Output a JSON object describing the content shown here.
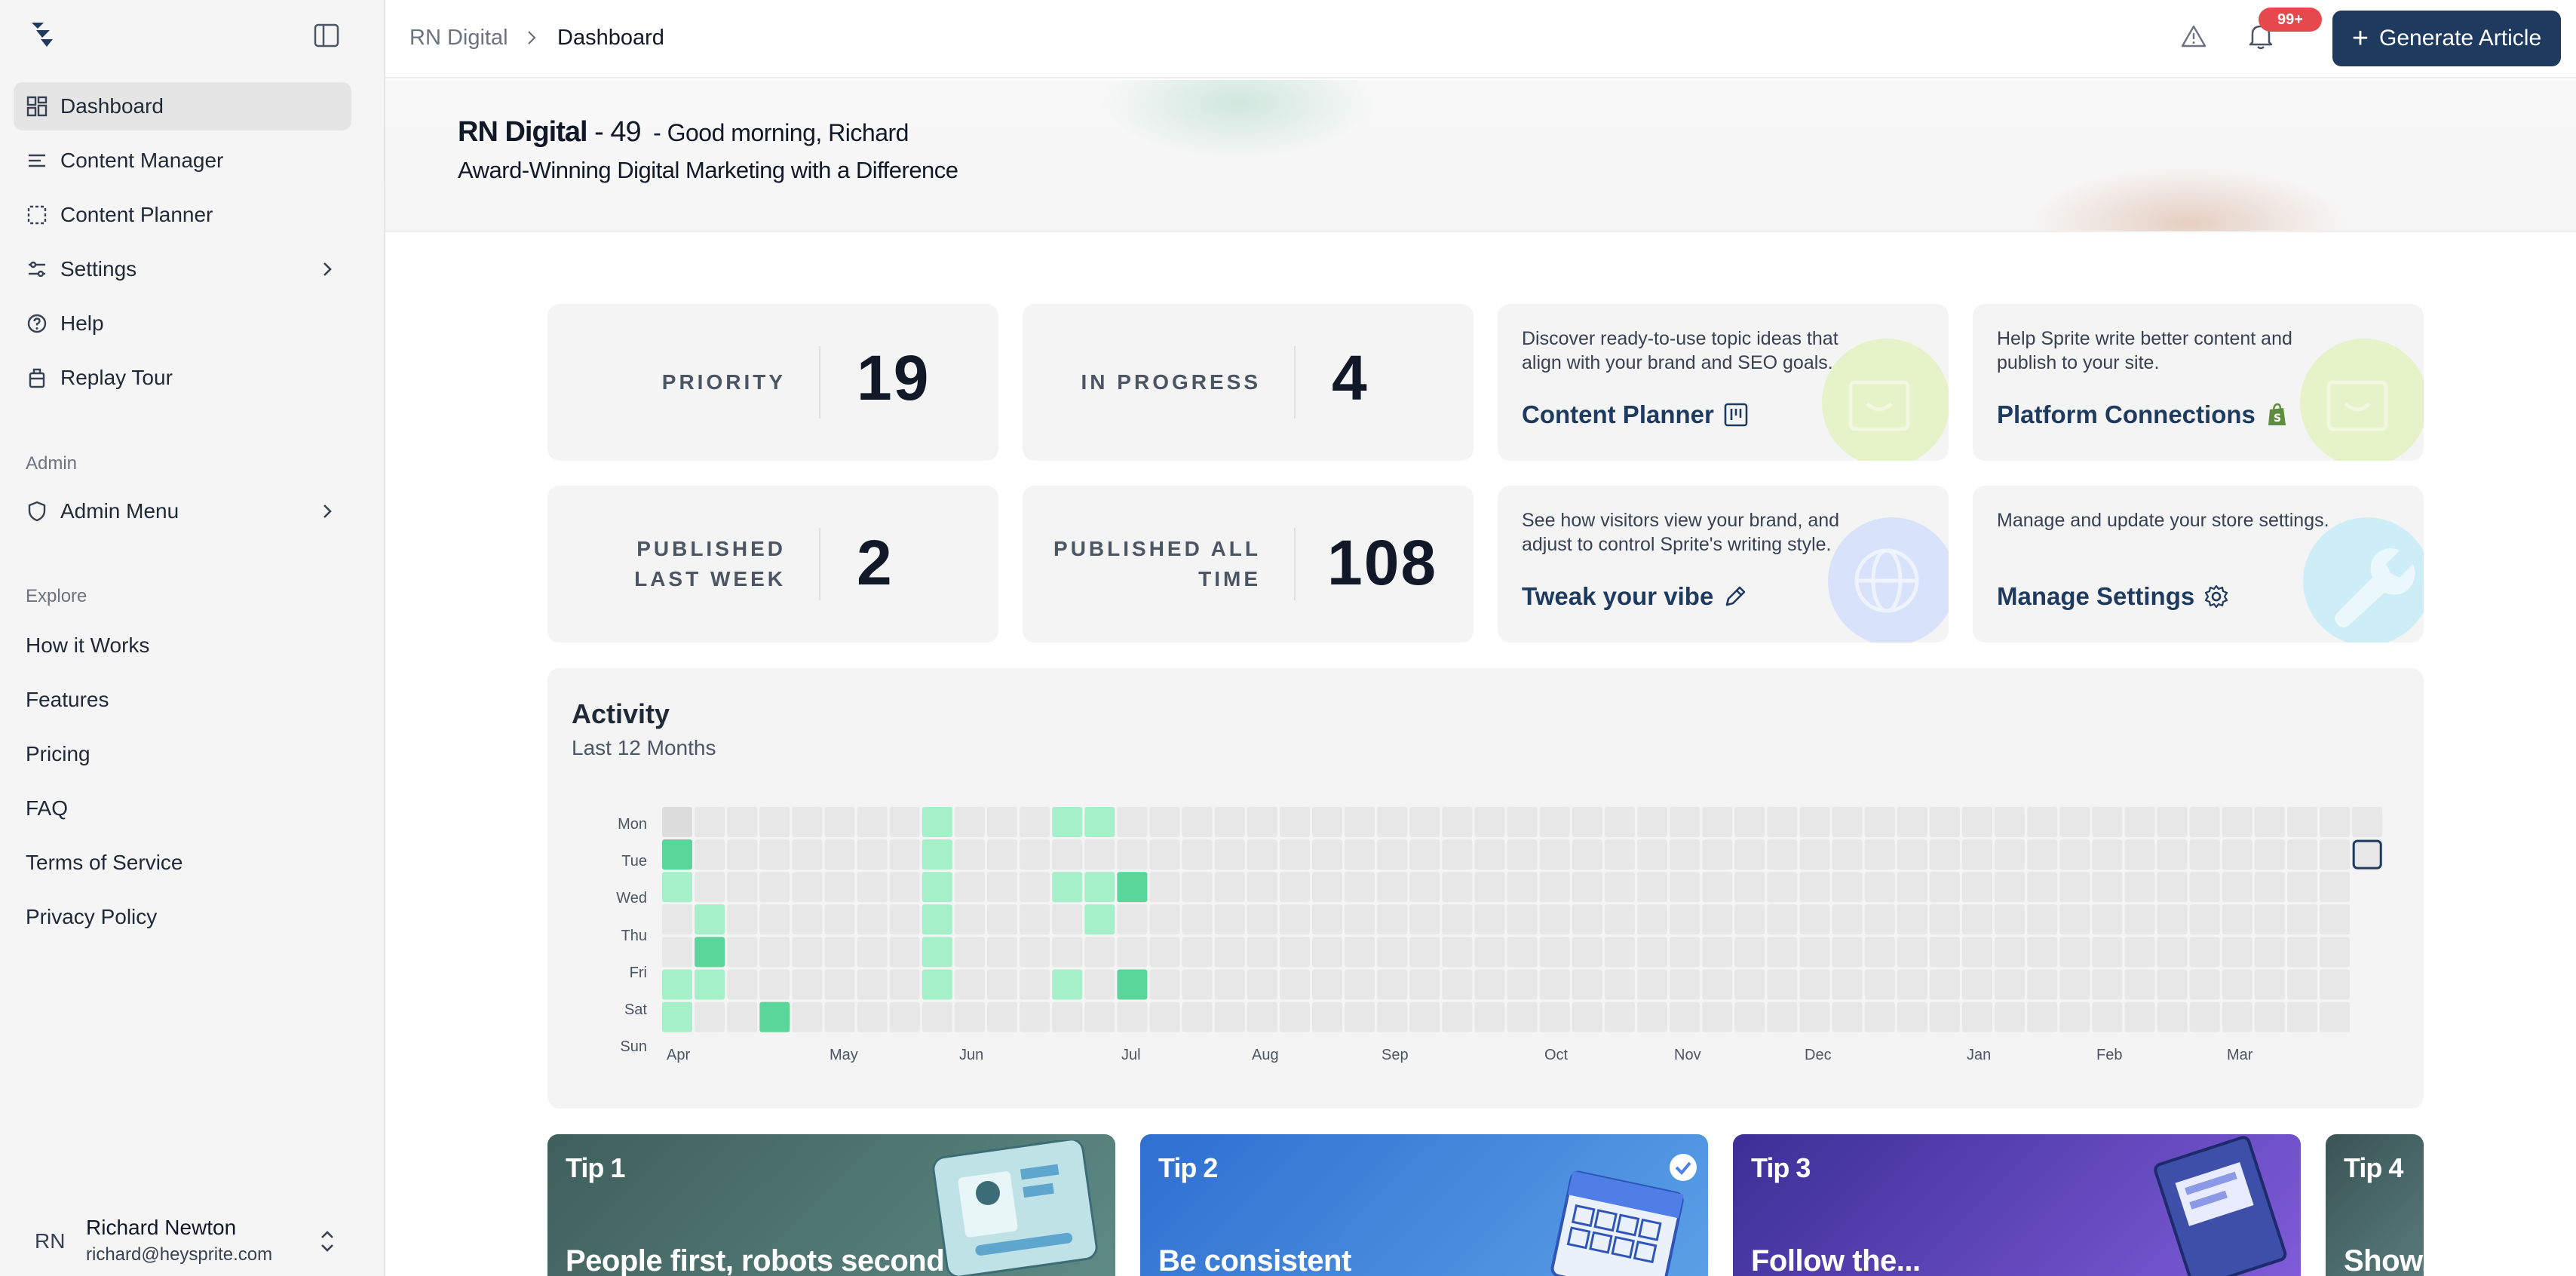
{
  "sidebar": {
    "nav": [
      {
        "label": "Dashboard",
        "icon": "dashboard-grid-icon",
        "active": true
      },
      {
        "label": "Content Manager",
        "icon": "list-icon"
      },
      {
        "label": "Content Planner",
        "icon": "planner-icon"
      },
      {
        "label": "Settings",
        "icon": "sliders-icon"
      },
      {
        "label": "Help",
        "icon": "help-circle-icon"
      },
      {
        "label": "Replay Tour",
        "icon": "luggage-icon"
      }
    ],
    "admin_label": "Admin",
    "admin_menu": "Admin Menu",
    "explore_label": "Explore",
    "explore": [
      "How it Works",
      "Features",
      "Pricing",
      "FAQ",
      "Terms of Service",
      "Privacy Policy"
    ],
    "user": {
      "initials": "RN",
      "name": "Richard Newton",
      "email": "richard@heysprite.com"
    }
  },
  "topbar": {
    "breadcrumb": [
      "RN Digital",
      "Dashboard"
    ],
    "notification_badge": "99+",
    "generate_label": "Generate Article"
  },
  "hero": {
    "company": "RN Digital",
    "score": " - 49",
    "greeting": "- Good morning, Richard",
    "tagline": "Award-Winning Digital Marketing with a Difference"
  },
  "stats": [
    {
      "label_lines": [
        "PRIORITY"
      ],
      "value": "19"
    },
    {
      "label_lines": [
        "IN PROGRESS"
      ],
      "value": "4"
    },
    {
      "label_lines": [
        "PUBLISHED",
        "LAST WEEK"
      ],
      "value": "2"
    },
    {
      "label_lines": [
        "PUBLISHED ALL",
        "TIME"
      ],
      "value": "108"
    }
  ],
  "promos": [
    {
      "text": "Discover ready-to-use topic ideas that align with your brand and SEO goals.",
      "title": "Content Planner",
      "icon": "kanban-icon",
      "blob_color": "#e6f2c7"
    },
    {
      "text": "Help Sprite write better content and publish to your site.",
      "title": "Platform Connections",
      "icon": "shopify-icon",
      "blob_color": "#e6f2c7"
    },
    {
      "text": "See how visitors view your brand, and adjust to control Sprite's writing style.",
      "title": "Tweak your vibe",
      "icon": "pencil-icon",
      "blob_color": "#d8e3fb"
    },
    {
      "text": "Manage and update your store settings.",
      "title": "Manage Settings",
      "icon": "gear-icon",
      "blob_color": "#cdeef7"
    }
  ],
  "activity": {
    "title": "Activity",
    "subtitle": "Last 12 Months",
    "days": [
      "Mon",
      "Tue",
      "Wed",
      "Thu",
      "Fri",
      "Sat",
      "Sun"
    ],
    "months": [
      {
        "label": "Apr",
        "week": 0
      },
      {
        "label": "May",
        "week": 5
      },
      {
        "label": "Jun",
        "week": 9
      },
      {
        "label": "Jul",
        "week": 14
      },
      {
        "label": "Aug",
        "week": 18
      },
      {
        "label": "Sep",
        "week": 22
      },
      {
        "label": "Oct",
        "week": 27
      },
      {
        "label": "Nov",
        "week": 31
      },
      {
        "label": "Dec",
        "week": 35
      },
      {
        "label": "Jan",
        "week": 40
      },
      {
        "label": "Feb",
        "week": 44
      },
      {
        "label": "Mar",
        "week": 48
      }
    ],
    "weeks": 53,
    "active_cells": [
      [
        0,
        0,
        1
      ],
      [
        1,
        0,
        2
      ],
      [
        2,
        0,
        1
      ],
      [
        5,
        0,
        1
      ],
      [
        6,
        0,
        1
      ],
      [
        8,
        0,
        1
      ],
      [
        11,
        0,
        1
      ],
      [
        12,
        0,
        1
      ],
      [
        13,
        0,
        1
      ],
      [
        14,
        0,
        1
      ],
      [
        3,
        1,
        1
      ],
      [
        4,
        1,
        2
      ],
      [
        5,
        1,
        1
      ],
      [
        7,
        1,
        1
      ],
      [
        10,
        1,
        1
      ],
      [
        11,
        1,
        1
      ],
      [
        12,
        1,
        1
      ],
      [
        13,
        1,
        1
      ],
      [
        14,
        1,
        1
      ],
      [
        16,
        1,
        2
      ],
      [
        18,
        1,
        1
      ],
      [
        8,
        2,
        1
      ],
      [
        9,
        2,
        1
      ],
      [
        6,
        3,
        2
      ],
      [
        8,
        3,
        1
      ],
      [
        12,
        3,
        2
      ],
      [
        13,
        3,
        1
      ],
      [
        16,
        3,
        1
      ],
      [
        9,
        4,
        1
      ],
      [
        10,
        4,
        1
      ],
      [
        11,
        4,
        1
      ],
      [
        12,
        4,
        1
      ],
      [
        13,
        4,
        1
      ],
      [
        11,
        6,
        2
      ],
      [
        12,
        6,
        1
      ],
      [
        13,
        6,
        1
      ],
      [
        15,
        6,
        1
      ],
      [
        13,
        7,
        1
      ],
      [
        14,
        7,
        1
      ],
      [
        0,
        8,
        1
      ],
      [
        1,
        8,
        1
      ],
      [
        2,
        8,
        1
      ],
      [
        3,
        8,
        1
      ],
      [
        4,
        8,
        1
      ],
      [
        5,
        8,
        1
      ],
      [
        8,
        8,
        1
      ],
      [
        7,
        9,
        1
      ],
      [
        10,
        9,
        1
      ],
      [
        9,
        11,
        1
      ],
      [
        10,
        11,
        1
      ],
      [
        12,
        11,
        2
      ],
      [
        13,
        11,
        2
      ],
      [
        14,
        11,
        1
      ],
      [
        15,
        11,
        1
      ],
      [
        0,
        12,
        1
      ],
      [
        2,
        12,
        1
      ],
      [
        5,
        12,
        1
      ],
      [
        8,
        12,
        1
      ],
      [
        9,
        12,
        1
      ],
      [
        11,
        12,
        1
      ],
      [
        12,
        12,
        1
      ],
      [
        13,
        12,
        1
      ],
      [
        14,
        12,
        1
      ],
      [
        15,
        12,
        1
      ],
      [
        0,
        13,
        1
      ],
      [
        2,
        13,
        1
      ],
      [
        3,
        13,
        1
      ],
      [
        9,
        13,
        1
      ],
      [
        10,
        13,
        1
      ],
      [
        11,
        13,
        1
      ],
      [
        12,
        13,
        1
      ],
      [
        13,
        13,
        1
      ],
      [
        14,
        13,
        1
      ],
      [
        15,
        13,
        1
      ],
      [
        2,
        14,
        2
      ],
      [
        5,
        14,
        2
      ],
      [
        10,
        14,
        1
      ],
      [
        12,
        14,
        2
      ],
      [
        13,
        14,
        1
      ],
      [
        14,
        14,
        1
      ],
      [
        15,
        14,
        1
      ]
    ],
    "legend_colors": {
      "0": "#e7e7e7",
      "1": "#a5f0c9",
      "2": "#5ad69b",
      "3": "#36a76f"
    }
  },
  "tips": [
    {
      "label": "Tip 1",
      "headline": "People first, robots second",
      "color": "#4a6d68"
    },
    {
      "label": "Tip 2",
      "headline": "Be consistent",
      "color": "#3f7fd3"
    },
    {
      "label": "Tip 3",
      "headline": "Follow the...",
      "color": "#4b40a7"
    },
    {
      "label": "Tip 4",
      "headline": "Show...",
      "color": "#3f5a5c"
    }
  ]
}
